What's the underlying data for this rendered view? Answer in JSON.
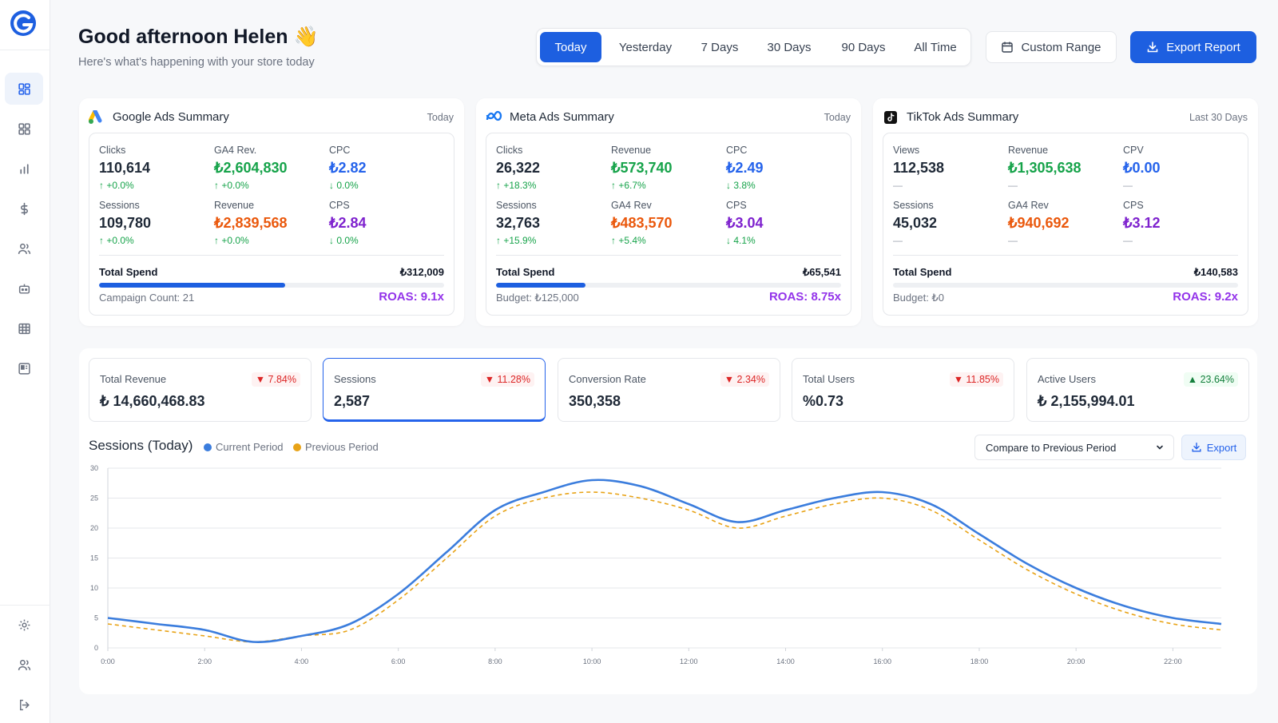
{
  "header": {
    "greeting": "Good afternoon Helen",
    "emoji": "👋",
    "subtitle": "Here's what's happening with your store today"
  },
  "sidebar": {
    "logo": "logo-g",
    "items": [
      {
        "icon": "dashboard-icon",
        "active": true
      },
      {
        "icon": "grid-icon"
      },
      {
        "icon": "bar-chart-icon"
      },
      {
        "icon": "dollar-icon"
      },
      {
        "icon": "users-icon"
      },
      {
        "icon": "robot-icon"
      },
      {
        "icon": "table-icon"
      },
      {
        "icon": "board-icon"
      }
    ],
    "bottom": [
      {
        "icon": "settings-icon"
      },
      {
        "icon": "team-icon"
      },
      {
        "icon": "logout-icon"
      }
    ]
  },
  "date_ranges": [
    "Today",
    "Yesterday",
    "7 Days",
    "30 Days",
    "90 Days",
    "All Time"
  ],
  "active_range": "Today",
  "buttons": {
    "custom_range": "Custom Range",
    "export_report": "Export Report",
    "export": "Export"
  },
  "ad_cards": [
    {
      "title": "Google Ads Summary",
      "period": "Today",
      "icon": "google-ads-icon",
      "metrics": [
        {
          "label": "Clicks",
          "value": "110,614",
          "change": "↑ +0.0%",
          "color": "dark"
        },
        {
          "label": "GA4 Rev.",
          "value": "₺2,604,830",
          "change": "↑ +0.0%",
          "color": "green"
        },
        {
          "label": "CPC",
          "value": "₺2.82",
          "change": "↓ 0.0%",
          "color": "blue"
        },
        {
          "label": "Sessions",
          "value": "109,780",
          "change": "↑ +0.0%",
          "color": "dark"
        },
        {
          "label": "Revenue",
          "value": "₺2,839,568",
          "change": "↑ +0.0%",
          "color": "orange"
        },
        {
          "label": "CPS",
          "value": "₺2.84",
          "change": "↓ 0.0%",
          "color": "purple"
        }
      ],
      "spend_label": "Total Spend",
      "spend": "₺312,009",
      "progress": 0.54,
      "footer": "Campaign Count: 21",
      "roas": "ROAS: 9.1x"
    },
    {
      "title": "Meta Ads Summary",
      "period": "Today",
      "icon": "meta-icon",
      "metrics": [
        {
          "label": "Clicks",
          "value": "26,322",
          "change": "↑ +18.3%",
          "color": "dark"
        },
        {
          "label": "Revenue",
          "value": "₺573,740",
          "change": "↑ +6.7%",
          "color": "green"
        },
        {
          "label": "CPC",
          "value": "₺2.49",
          "change": "↓ 3.8%",
          "color": "blue"
        },
        {
          "label": "Sessions",
          "value": "32,763",
          "change": "↑ +15.9%",
          "color": "dark"
        },
        {
          "label": "GA4 Rev",
          "value": "₺483,570",
          "change": "↑ +5.4%",
          "color": "orange"
        },
        {
          "label": "CPS",
          "value": "₺3.04",
          "change": "↓ 4.1%",
          "color": "purple"
        }
      ],
      "spend_label": "Total Spend",
      "spend": "₺65,541",
      "progress": 0.26,
      "footer": "Budget: ₺125,000",
      "roas": "ROAS: 8.75x"
    },
    {
      "title": "TikTok Ads Summary",
      "period": "Last 30 Days",
      "icon": "tiktok-icon",
      "metrics": [
        {
          "label": "Views",
          "value": "112,538",
          "change": "—",
          "color": "dark"
        },
        {
          "label": "Revenue",
          "value": "₺1,305,638",
          "change": "—",
          "color": "green"
        },
        {
          "label": "CPV",
          "value": "₺0.00",
          "change": "—",
          "color": "blue"
        },
        {
          "label": "Sessions",
          "value": "45,032",
          "change": "—",
          "color": "dark"
        },
        {
          "label": "GA4 Rev",
          "value": "₺940,692",
          "change": "—",
          "color": "orange"
        },
        {
          "label": "CPS",
          "value": "₺3.12",
          "change": "—",
          "color": "purple"
        }
      ],
      "spend_label": "Total Spend",
      "spend": "₺140,583",
      "progress": 0,
      "footer": "Budget: ₺0",
      "roas": "ROAS: 9.2x"
    }
  ],
  "kpis": [
    {
      "label": "Total Revenue",
      "value": "₺ 14,660,468.83",
      "change": "▼ 7.84%",
      "direction": "down"
    },
    {
      "label": "Sessions",
      "value": "2,587",
      "change": "▼ 11.28%",
      "direction": "down",
      "selected": true
    },
    {
      "label": "Conversion Rate",
      "value": "350,358",
      "change": "▼ 2.34%",
      "direction": "down"
    },
    {
      "label": "Total Users",
      "value": "%0.73",
      "change": "▼ 11.85%",
      "direction": "down"
    },
    {
      "label": "Active Users",
      "value": "₺ 2,155,994.01",
      "change": "▲ 23.64%",
      "direction": "up"
    }
  ],
  "chart_section": {
    "title": "Sessions (Today)",
    "legend": [
      "Current Period",
      "Previous Period"
    ],
    "compare_select": "Compare to Previous Period"
  },
  "chart_data": {
    "type": "line",
    "x": [
      "0:00",
      "1:00",
      "2:00",
      "3:00",
      "4:00",
      "5:00",
      "6:00",
      "7:00",
      "8:00",
      "9:00",
      "10:00",
      "11:00",
      "12:00",
      "13:00",
      "14:00",
      "15:00",
      "16:00",
      "17:00",
      "18:00",
      "19:00",
      "20:00",
      "21:00",
      "22:00",
      "23:00"
    ],
    "x_ticks": [
      "0:00",
      "2:00",
      "4:00",
      "6:00",
      "8:00",
      "10:00",
      "12:00",
      "14:00",
      "16:00",
      "18:00",
      "20:00",
      "22:00"
    ],
    "series": [
      {
        "name": "Current Period",
        "color": "#3b7ddd",
        "style": "solid",
        "values": [
          5,
          4,
          3,
          1,
          2,
          4,
          9,
          16,
          23,
          26,
          28,
          27,
          24,
          21,
          23,
          25,
          26,
          24,
          19,
          14,
          10,
          7,
          5,
          4
        ]
      },
      {
        "name": "Previous Period",
        "color": "#e8a317",
        "style": "dashed",
        "values": [
          4,
          3,
          2,
          1,
          2,
          3,
          8,
          15,
          22,
          25,
          26,
          25,
          23,
          20,
          22,
          24,
          25,
          23,
          18,
          13,
          9,
          6,
          4,
          3
        ]
      }
    ],
    "ylim": [
      0,
      30
    ],
    "y_ticks": [
      0,
      5,
      10,
      15,
      20,
      25,
      30
    ],
    "grid": true
  }
}
